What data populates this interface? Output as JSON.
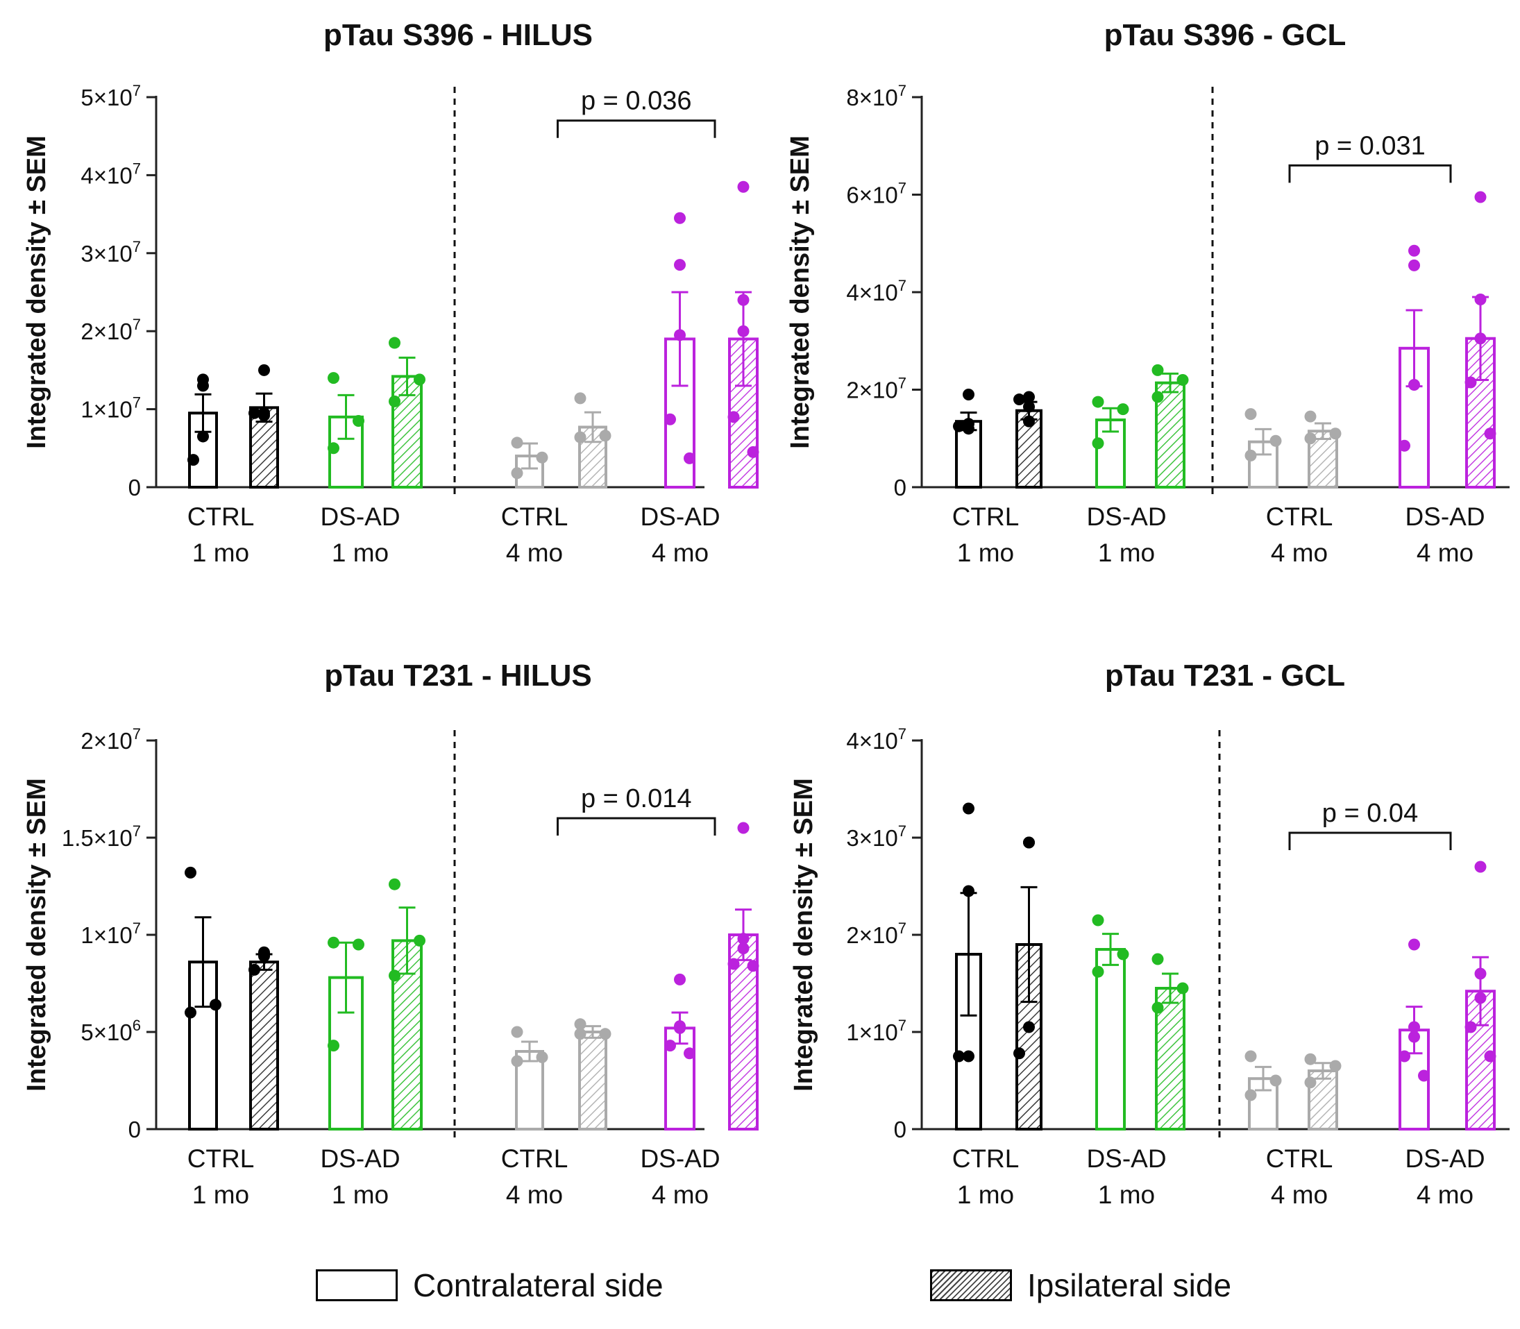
{
  "figure": {
    "legend": {
      "contralateral": "Contralateral side",
      "ipsilateral": "Ipsilateral side"
    }
  },
  "colors": {
    "ctrl1": "#000000",
    "ds1": "#22bb22",
    "ctrl4": "#aaaaaa",
    "ds4": "#bb22dd"
  },
  "chart_data": [
    {
      "type": "bar",
      "title": "pTau S396 - HILUS",
      "ylabel": "Integrated density ± SEM",
      "ylim": [
        0,
        50000000
      ],
      "yticks": [
        {
          "v": 0,
          "b": "0",
          "e": ""
        },
        {
          "v": 10000000,
          "b": "1×10",
          "e": "7"
        },
        {
          "v": 20000000,
          "b": "2×10",
          "e": "7"
        },
        {
          "v": 30000000,
          "b": "3×10",
          "e": "7"
        },
        {
          "v": 40000000,
          "b": "4×10",
          "e": "7"
        },
        {
          "v": 50000000,
          "b": "5×10",
          "e": "7"
        }
      ],
      "groups": [
        {
          "line1": "CTRL",
          "line2": "1 mo",
          "color": "ctrl1",
          "contra": {
            "mean": 9500000,
            "sem": 2400000,
            "points": [
              13000000,
              13800000,
              6500000,
              3500000
            ]
          },
          "ipsi": {
            "mean": 10200000,
            "sem": 1800000,
            "points": [
              15000000,
              9500000,
              9200000,
              9500000
            ]
          }
        },
        {
          "line1": "DS-AD",
          "line2": "1 mo",
          "color": "ds1",
          "contra": {
            "mean": 9000000,
            "sem": 2800000,
            "points": [
              14000000,
              8500000,
              5000000
            ]
          },
          "ipsi": {
            "mean": 14200000,
            "sem": 2400000,
            "points": [
              18500000,
              13800000,
              11000000
            ]
          }
        },
        {
          "line1": "CTRL",
          "line2": "4 mo",
          "color": "ctrl4",
          "contra": {
            "mean": 4000000,
            "sem": 1600000,
            "points": [
              5700000,
              3800000,
              1800000
            ]
          },
          "ipsi": {
            "mean": 7700000,
            "sem": 1900000,
            "points": [
              11400000,
              6600000,
              6400000
            ]
          }
        },
        {
          "line1": "DS-AD",
          "line2": "4 mo",
          "color": "ds4",
          "contra": {
            "mean": 19000000,
            "sem": 6000000,
            "points": [
              34500000,
              28500000,
              19500000,
              8700000,
              3700000
            ]
          },
          "ipsi": {
            "mean": 19000000,
            "sem": 6000000,
            "points": [
              38500000,
              24000000,
              20000000,
              9000000,
              4500000
            ]
          }
        }
      ],
      "sig": {
        "label": "p = 0.036",
        "from": 2,
        "to": 3,
        "value": 47000000
      }
    },
    {
      "type": "bar",
      "title": "pTau S396 - GCL",
      "ylabel": "Integrated density ± SEM",
      "ylim": [
        0,
        80000000
      ],
      "yticks": [
        {
          "v": 0,
          "b": "0",
          "e": ""
        },
        {
          "v": 20000000,
          "b": "2×10",
          "e": "7"
        },
        {
          "v": 40000000,
          "b": "4×10",
          "e": "7"
        },
        {
          "v": 60000000,
          "b": "6×10",
          "e": "7"
        },
        {
          "v": 80000000,
          "b": "8×10",
          "e": "7"
        }
      ],
      "groups": [
        {
          "line1": "CTRL",
          "line2": "1 mo",
          "color": "ctrl1",
          "contra": {
            "mean": 13500000,
            "sem": 1800000,
            "points": [
              19000000,
              13000000,
              12000000,
              12500000
            ]
          },
          "ipsi": {
            "mean": 15700000,
            "sem": 1800000,
            "points": [
              18500000,
              16500000,
              13500000,
              18000000
            ]
          }
        },
        {
          "line1": "DS-AD",
          "line2": "1 mo",
          "color": "ds1",
          "contra": {
            "mean": 13800000,
            "sem": 2400000,
            "points": [
              17500000,
              16000000,
              9000000
            ]
          },
          "ipsi": {
            "mean": 21400000,
            "sem": 1900000,
            "points": [
              24000000,
              22000000,
              18500000
            ]
          }
        },
        {
          "line1": "CTRL",
          "line2": "4 mo",
          "color": "ctrl4",
          "contra": {
            "mean": 9300000,
            "sem": 2600000,
            "points": [
              15000000,
              9500000,
              6500000
            ]
          },
          "ipsi": {
            "mean": 11500000,
            "sem": 1600000,
            "points": [
              14500000,
              11000000,
              10000000
            ]
          }
        },
        {
          "line1": "DS-AD",
          "line2": "4 mo",
          "color": "ds4",
          "contra": {
            "mean": 28500000,
            "sem": 7800000,
            "points": [
              48500000,
              45500000,
              21000000,
              8500000
            ]
          },
          "ipsi": {
            "mean": 30500000,
            "sem": 8500000,
            "points": [
              59500000,
              38500000,
              30500000,
              21500000,
              11000000
            ]
          }
        }
      ],
      "sig": {
        "label": "p = 0.031",
        "from": 2,
        "to": 3,
        "value": 66000000
      }
    },
    {
      "type": "bar",
      "title": "pTau T231 - HILUS",
      "ylabel": "Integrated density ± SEM",
      "ylim": [
        0,
        20000000
      ],
      "yticks": [
        {
          "v": 0,
          "b": "0",
          "e": ""
        },
        {
          "v": 5000000,
          "b": "5×10",
          "e": "6"
        },
        {
          "v": 10000000,
          "b": "1×10",
          "e": "7"
        },
        {
          "v": 15000000,
          "b": "1.5×10",
          "e": "7"
        },
        {
          "v": 20000000,
          "b": "2×10",
          "e": "7"
        }
      ],
      "groups": [
        {
          "line1": "CTRL",
          "line2": "1 mo",
          "color": "ctrl1",
          "contra": {
            "mean": 8600000,
            "sem": 2300000,
            "points": [
              13200000,
              6400000,
              6000000
            ]
          },
          "ipsi": {
            "mean": 8600000,
            "sem": 400000,
            "points": [
              9100000,
              8900000,
              9000000,
              8200000
            ]
          }
        },
        {
          "line1": "DS-AD",
          "line2": "1 mo",
          "color": "ds1",
          "contra": {
            "mean": 7800000,
            "sem": 1800000,
            "points": [
              9600000,
              9500000,
              4300000
            ]
          },
          "ipsi": {
            "mean": 9700000,
            "sem": 1700000,
            "points": [
              12600000,
              9700000,
              7900000
            ]
          }
        },
        {
          "line1": "CTRL",
          "line2": "4 mo",
          "color": "ctrl4",
          "contra": {
            "mean": 4000000,
            "sem": 500000,
            "points": [
              5000000,
              3700000,
              3500000
            ]
          },
          "ipsi": {
            "mean": 5000000,
            "sem": 300000,
            "points": [
              5400000,
              4900000,
              4900000
            ]
          }
        },
        {
          "line1": "DS-AD",
          "line2": "4 mo",
          "color": "ds4",
          "contra": {
            "mean": 5200000,
            "sem": 800000,
            "points": [
              7700000,
              5300000,
              5200000,
              4300000,
              3900000
            ]
          },
          "ipsi": {
            "mean": 10000000,
            "sem": 1300000,
            "points": [
              15500000,
              9800000,
              9300000,
              8500000,
              8400000
            ]
          }
        }
      ],
      "sig": {
        "label": "p = 0.014",
        "from": 2,
        "to": 3,
        "value": 16000000
      }
    },
    {
      "type": "bar",
      "title": "pTau T231 - GCL",
      "ylabel": "Integrated density ± SEM",
      "ylim": [
        0,
        40000000
      ],
      "yticks": [
        {
          "v": 0,
          "b": "0",
          "e": ""
        },
        {
          "v": 10000000,
          "b": "1×10",
          "e": "7"
        },
        {
          "v": 20000000,
          "b": "2×10",
          "e": "7"
        },
        {
          "v": 30000000,
          "b": "3×10",
          "e": "7"
        },
        {
          "v": 40000000,
          "b": "4×10",
          "e": "7"
        }
      ],
      "groups": [
        {
          "line1": "CTRL",
          "line2": "1 mo",
          "color": "ctrl1",
          "contra": {
            "mean": 18000000,
            "sem": 6300000,
            "points": [
              33000000,
              24500000,
              7500000,
              7500000
            ]
          },
          "ipsi": {
            "mean": 19000000,
            "sem": 5900000,
            "points": [
              29500000,
              29500000,
              10500000,
              7800000
            ]
          }
        },
        {
          "line1": "DS-AD",
          "line2": "1 mo",
          "color": "ds1",
          "contra": {
            "mean": 18500000,
            "sem": 1600000,
            "points": [
              21500000,
              18000000,
              16200000
            ]
          },
          "ipsi": {
            "mean": 14500000,
            "sem": 1500000,
            "points": [
              17500000,
              14500000,
              12500000
            ]
          }
        },
        {
          "line1": "CTRL",
          "line2": "4 mo",
          "color": "ctrl4",
          "contra": {
            "mean": 5200000,
            "sem": 1200000,
            "points": [
              7500000,
              5000000,
              3500000
            ]
          },
          "ipsi": {
            "mean": 6000000,
            "sem": 800000,
            "points": [
              7200000,
              6500000,
              4800000
            ]
          }
        },
        {
          "line1": "DS-AD",
          "line2": "4 mo",
          "color": "ds4",
          "contra": {
            "mean": 10200000,
            "sem": 2400000,
            "points": [
              19000000,
              10500000,
              9500000,
              7500000,
              5500000
            ]
          },
          "ipsi": {
            "mean": 14200000,
            "sem": 3500000,
            "points": [
              27000000,
              16000000,
              13500000,
              10500000,
              7500000
            ]
          }
        }
      ],
      "sig": {
        "label": "p = 0.04",
        "from": 2,
        "to": 3,
        "value": 30500000
      }
    }
  ]
}
